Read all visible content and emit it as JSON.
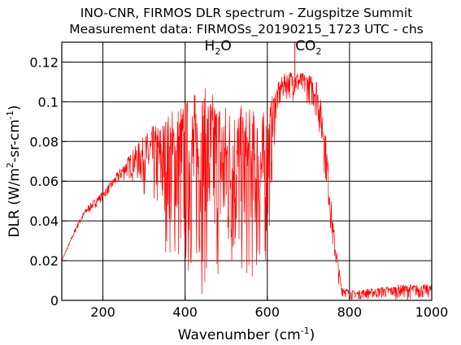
{
  "chart_data": {
    "type": "line",
    "title": "INO-CNR, FIRMOS DLR spectrum - Zugspitze Summit",
    "subtitle": "Measurement data: FIRMOSs_20190215_1723 UTC - chs",
    "xlabel": {
      "main": "Wavenumber (cm",
      "sup": "-1",
      "tail": ")"
    },
    "ylabel": {
      "a": "DLR (W/m",
      "sup1": "2",
      "b": "-sr-cm",
      "sup2": "-1",
      "c": ")"
    },
    "xlim": [
      100,
      1000
    ],
    "ylim": [
      0,
      0.13
    ],
    "xticks": [
      200,
      400,
      600,
      800,
      1000
    ],
    "yticks": [
      0,
      0.02,
      0.04,
      0.06,
      0.08,
      0.1,
      0.12
    ],
    "ytick_labels": [
      "0",
      "0.02",
      "0.04",
      "0.06",
      "0.08",
      "0.1",
      "0.12"
    ],
    "grid": true,
    "series_color": "#ff0000",
    "annotations": [
      {
        "base": "H",
        "sub": "2",
        "tail": "O",
        "x": 480,
        "y": 0.126
      },
      {
        "base": "CO",
        "sub": "2",
        "tail": "",
        "x": 700,
        "y": 0.126
      }
    ],
    "series": [
      {
        "x": [
          100,
          120,
          140,
          160,
          180,
          200,
          220,
          240,
          260,
          280,
          300,
          320,
          340,
          360,
          380,
          400,
          420,
          440,
          460,
          480,
          500,
          520,
          540,
          560,
          580,
          600,
          620,
          640,
          660,
          680,
          700,
          720,
          740,
          760,
          780,
          800,
          820,
          840,
          860,
          880,
          900,
          920,
          940,
          960,
          980,
          1000
        ],
        "y": [
          0.02,
          0.03,
          0.04,
          0.047,
          0.051,
          0.055,
          0.06,
          0.066,
          0.072,
          0.078,
          0.083,
          0.088,
          0.09,
          0.095,
          0.1,
          0.102,
          0.105,
          0.108,
          0.106,
          0.104,
          0.1,
          0.1,
          0.098,
          0.097,
          0.095,
          0.096,
          0.108,
          0.114,
          0.116,
          0.115,
          0.114,
          0.112,
          0.09,
          0.04,
          0.008,
          0.005,
          0.005,
          0.006,
          0.006,
          0.007,
          0.007,
          0.008,
          0.008,
          0.008,
          0.008,
          0.008
        ],
        "ymin": [
          0.02,
          0.028,
          0.036,
          0.042,
          0.046,
          0.05,
          0.054,
          0.058,
          0.06,
          0.058,
          0.052,
          0.042,
          0.03,
          0.018,
          0.005,
          0.0,
          0.0,
          0.0,
          0.0,
          0.0,
          0.0,
          0.0,
          0.0,
          0.0,
          0.0,
          0.01,
          0.085,
          0.1,
          0.1,
          0.1,
          0.098,
          0.09,
          0.06,
          0.02,
          0.002,
          0.0,
          0.0,
          0.0,
          0.0,
          0.0,
          0.0,
          0.0,
          0.0,
          0.0,
          0.0,
          0.0
        ]
      }
    ]
  }
}
